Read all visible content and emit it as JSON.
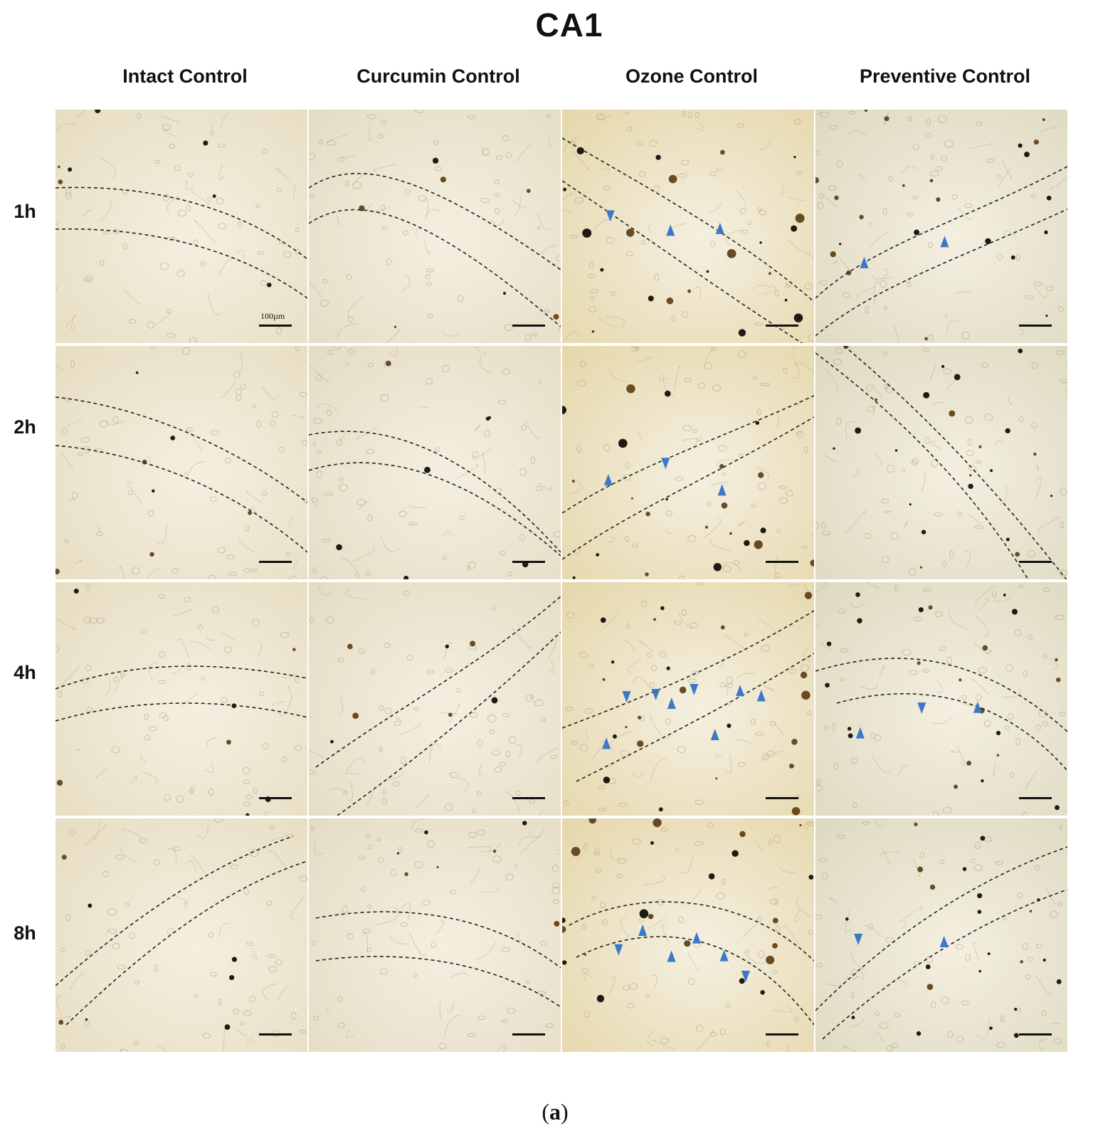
{
  "figure": {
    "title": "CA1",
    "caption_open": "(",
    "caption_letter": "a",
    "caption_close": ")",
    "scale_bar_label": "100µm",
    "arrowhead_color": "#3a78c8"
  },
  "columns": [
    {
      "label": "Intact Control",
      "tint": "#e6dcc0"
    },
    {
      "label": "Curcumin Control",
      "tint": "#e3dbc3"
    },
    {
      "label": "Ozone Control",
      "tint": "#e5d6a8"
    },
    {
      "label": "Preventive Control",
      "tint": "#dcd8bf"
    }
  ],
  "rows": [
    {
      "label": "1h"
    },
    {
      "label": "2h"
    },
    {
      "label": "4h"
    },
    {
      "label": "8h"
    }
  ],
  "arrowheads_per_panel": [
    [
      0,
      0,
      3,
      2
    ],
    [
      0,
      0,
      3,
      0
    ],
    [
      0,
      0,
      8,
      3
    ],
    [
      0,
      0,
      6,
      2
    ]
  ]
}
